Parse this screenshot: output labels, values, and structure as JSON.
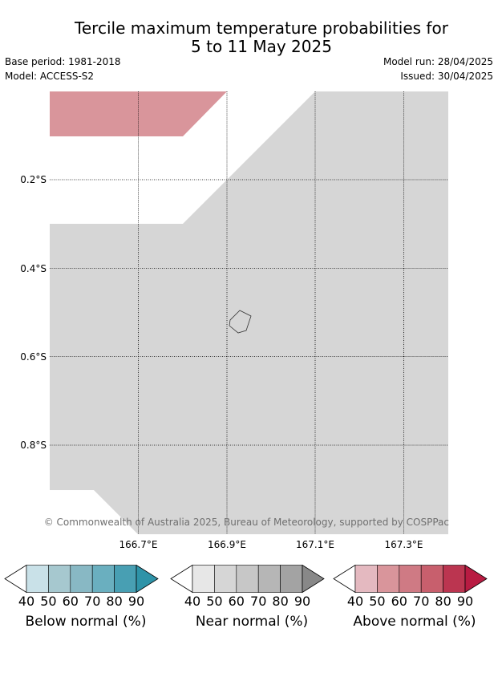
{
  "title_line1": "Tercile maximum temperature probabilities for",
  "title_line2": "5 to 11 May 2025",
  "base_period": "Base period: 1981-2018",
  "model": "Model: ACCESS-S2",
  "model_run": "Model run: 28/04/2025",
  "issued": "Issued: 30/04/2025",
  "map": {
    "lat_labels": [
      "0.2°S",
      "0.4°S",
      "0.6°S",
      "0.8°S"
    ],
    "lon_labels": [
      "166.7°E",
      "166.9°E",
      "167.1°E",
      "167.3°E"
    ],
    "copyright": "© Commonwealth of Australia 2025, Bureau of Meteorology, supported by COSPPac",
    "colors": {
      "near_normal_fill": "#d6d6d6",
      "above_normal_fill": "#d9959b",
      "background": "#ffffff",
      "gridline": "#000000",
      "coastline": "#333333"
    }
  },
  "legends": [
    {
      "caption": "Below normal (%)",
      "ticks": [
        "40",
        "50",
        "60",
        "70",
        "80",
        "90"
      ],
      "colors": [
        "#ffffff",
        "#c9e1e8",
        "#a6c8cf",
        "#88b8c4",
        "#6aafbf",
        "#489fb3",
        "#2e93a8"
      ]
    },
    {
      "caption": "Near normal (%)",
      "ticks": [
        "40",
        "50",
        "60",
        "70",
        "80",
        "90"
      ],
      "colors": [
        "#ffffff",
        "#e7e7e7",
        "#d6d6d6",
        "#c7c7c7",
        "#b6b6b6",
        "#a3a3a3",
        "#888888"
      ]
    },
    {
      "caption": "Above normal (%)",
      "ticks": [
        "40",
        "50",
        "60",
        "70",
        "80",
        "90"
      ],
      "colors": [
        "#ffffff",
        "#e4b9c0",
        "#d9959b",
        "#cf7a84",
        "#c85f6d",
        "#bb3550",
        "#b81b42"
      ]
    }
  ]
}
